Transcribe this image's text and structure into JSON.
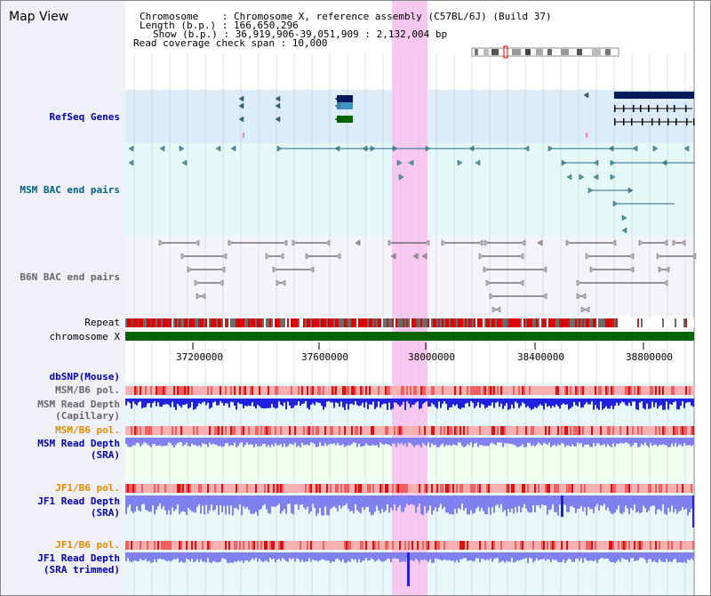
{
  "view_title": "Map View",
  "info": {
    "chromosome_line": "Chromosome    : Chromosome X, reference assembly (C57BL/6J) (Build 37)",
    "length_line": "Length (b.p.) : 166,650,296",
    "show_line": "Show (b.p.) : 36,919,906-39,051,909 : 2,132,004 bp",
    "coverage_line": "Read coverage check span : 10,000"
  },
  "tracks": {
    "refseq": "RefSeq Genes",
    "msm_bac": "MSM BAC end pairs",
    "b6n_bac": "B6N BAC end pairs",
    "repeat": "Repeat",
    "chromosome": "chromosome X",
    "dbsnp": "dbSNP(Mouse)",
    "msm_pol_1": "MSM/B6 pol.",
    "msm_depth_cap_1": "MSM Read Depth",
    "msm_depth_cap_2": "(Capillary)",
    "msm_pol_2": "MSM/B6 pol.",
    "msm_depth_sra_1": "MSM Read Depth",
    "msm_depth_sra_2": "(SRA)",
    "jf1_pol_1": "JF1/B6 pol.",
    "jf1_depth_sra_1": "JF1 Read Depth",
    "jf1_depth_sra_2": "(SRA)",
    "jf1_pol_2": "JF1/B6 pol.",
    "jf1_depth_trim_1": "JF1 Read Depth",
    "jf1_depth_trim_2": "(SRA trimmed)"
  },
  "axis": {
    "ticks": [
      "37200000",
      "37600000",
      "38000000",
      "38400000",
      "38800000"
    ]
  },
  "colors": {
    "refseq_bg": "#dcecf8",
    "msm_bac_bg": "#e4f8f8",
    "b6n_bac_bg": "#f4f4f8",
    "highlight": "#f8c8f0",
    "chromosome": "#006400",
    "depth_blue": "#2020e0",
    "depth_light": "#8080f0",
    "pol_pink": "#f8b0b0",
    "pol_red": "#e01010"
  }
}
